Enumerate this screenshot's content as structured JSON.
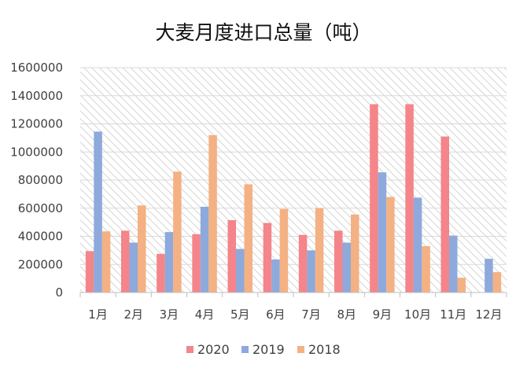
{
  "chart_data": {
    "type": "bar",
    "title": "大麦月度进口总量（吨）",
    "categories": [
      "1月",
      "2月",
      "3月",
      "4月",
      "5月",
      "6月",
      "7月",
      "8月",
      "9月",
      "10月",
      "11月",
      "12月"
    ],
    "series": [
      {
        "name": "2020",
        "color": "#F4858A",
        "values": [
          295000,
          440000,
          275000,
          415000,
          515000,
          495000,
          410000,
          440000,
          1340000,
          1340000,
          1110000,
          null
        ]
      },
      {
        "name": "2019",
        "color": "#8EA9DB",
        "values": [
          1145000,
          355000,
          430000,
          610000,
          310000,
          235000,
          300000,
          355000,
          855000,
          675000,
          405000,
          240000
        ]
      },
      {
        "name": "2018",
        "color": "#F4B183",
        "values": [
          435000,
          620000,
          860000,
          1120000,
          770000,
          595000,
          600000,
          555000,
          680000,
          330000,
          105000,
          145000
        ]
      }
    ],
    "yticks": [
      "0",
      "200000",
      "400000",
      "600000",
      "800000",
      "1000000",
      "1200000",
      "1400000",
      "1600000"
    ],
    "ylim": [
      0,
      1600000
    ],
    "grid": true,
    "legend_position": "bottom"
  }
}
